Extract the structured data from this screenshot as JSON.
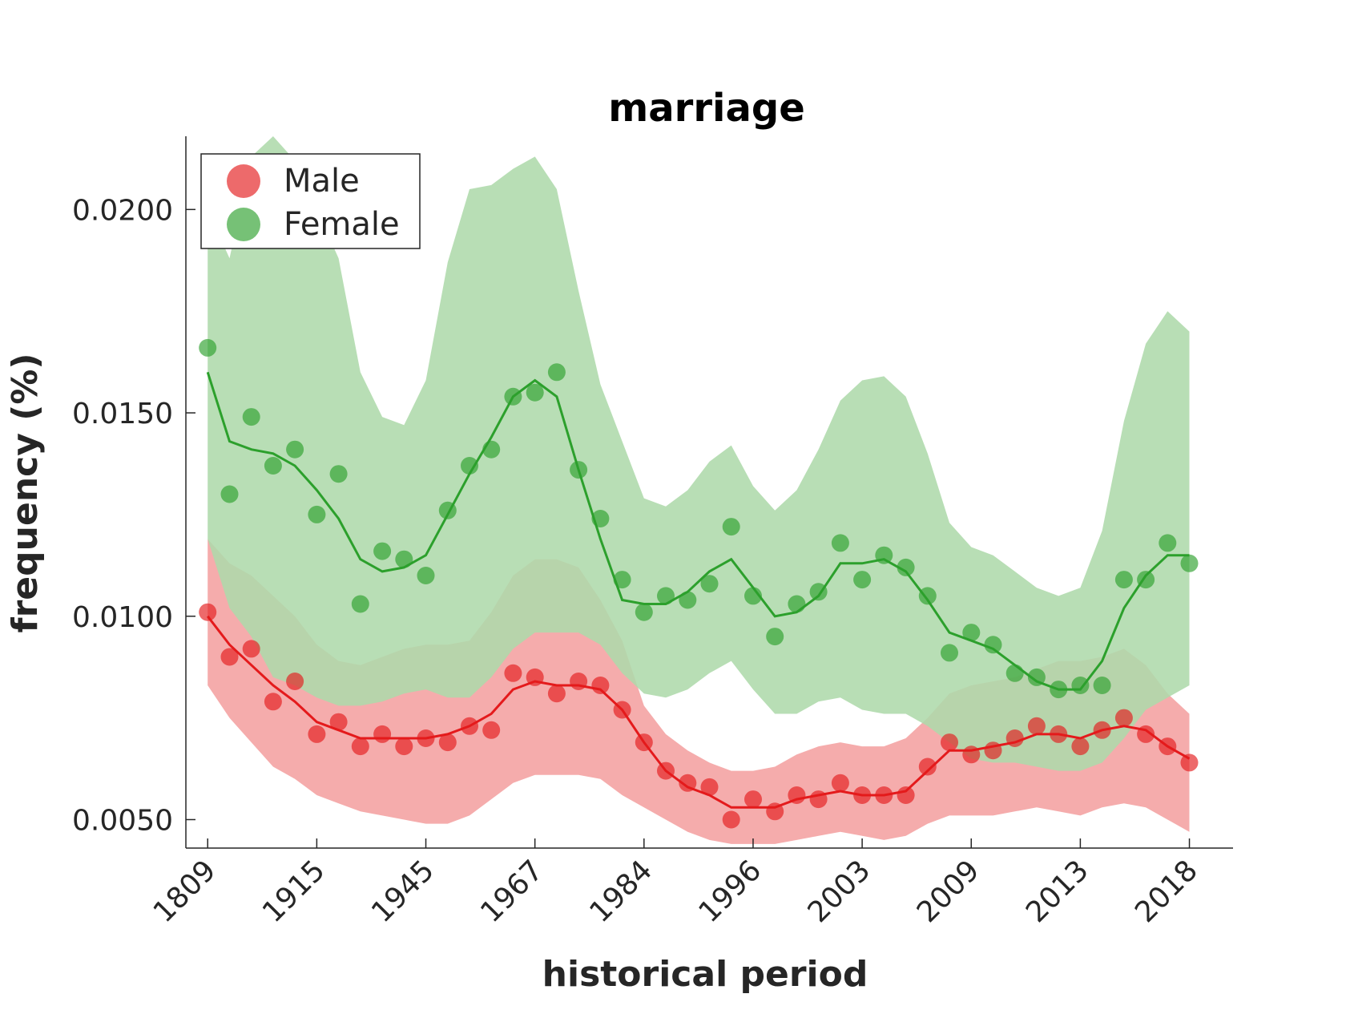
{
  "chart_data": {
    "type": "line",
    "title": "marriage",
    "xlabel": "historical period",
    "ylabel": "frequency (%)",
    "x_tick_labels": [
      "1809",
      "1915",
      "1945",
      "1967",
      "1984",
      "1996",
      "2003",
      "2009",
      "2013",
      "2018"
    ],
    "x_tick_positions": [
      1,
      6,
      11,
      16,
      21,
      26,
      31,
      36,
      41,
      46
    ],
    "x": [
      1,
      2,
      3,
      4,
      5,
      6,
      7,
      8,
      9,
      10,
      11,
      12,
      13,
      14,
      15,
      16,
      17,
      18,
      19,
      20,
      21,
      22,
      23,
      24,
      25,
      26,
      27,
      28,
      29,
      30,
      31,
      32,
      33,
      34,
      35,
      36,
      37,
      38,
      39,
      40,
      41,
      42,
      43,
      44,
      45,
      46
    ],
    "xlim": [
      0,
      48
    ],
    "ylim": [
      0.0043,
      0.0218
    ],
    "y_ticks": [
      0.005,
      0.01,
      0.015,
      0.02
    ],
    "y_tick_labels": [
      "0.0050",
      "0.0100",
      "0.0150",
      "0.0200"
    ],
    "grid": false,
    "legend": {
      "position": "top-left",
      "entries": [
        "Male",
        "Female"
      ]
    },
    "series": [
      {
        "name": "Male",
        "color": "#e41a1c",
        "band_color": "#f4a1a1",
        "points": [
          0.0101,
          0.009,
          0.0092,
          0.0079,
          0.0084,
          0.0071,
          0.0074,
          0.0068,
          0.0071,
          0.0068,
          0.007,
          0.0069,
          0.0073,
          0.0072,
          0.0086,
          0.0085,
          0.0081,
          0.0084,
          0.0083,
          0.0077,
          0.0069,
          0.0062,
          0.0059,
          0.0058,
          0.005,
          0.0055,
          0.0052,
          0.0056,
          0.0055,
          0.0059,
          0.0056,
          0.0056,
          0.0056,
          0.0063,
          0.0069,
          0.0066,
          0.0067,
          0.007,
          0.0073,
          0.0071,
          0.0068,
          0.0072,
          0.0075,
          0.0071,
          0.0068,
          0.0064
        ],
        "smooth": [
          0.01,
          0.0093,
          0.0088,
          0.0083,
          0.0079,
          0.0074,
          0.0072,
          0.007,
          0.007,
          0.007,
          0.007,
          0.0071,
          0.0073,
          0.0076,
          0.0082,
          0.0084,
          0.0083,
          0.0083,
          0.0082,
          0.0077,
          0.0069,
          0.0062,
          0.0058,
          0.0056,
          0.0053,
          0.0053,
          0.0053,
          0.0055,
          0.0056,
          0.0057,
          0.0056,
          0.0056,
          0.0057,
          0.0062,
          0.0067,
          0.0067,
          0.0068,
          0.0069,
          0.0071,
          0.0071,
          0.007,
          0.0072,
          0.0073,
          0.0072,
          0.0068,
          0.0065
        ],
        "lower": [
          0.0083,
          0.0075,
          0.0069,
          0.0063,
          0.006,
          0.0056,
          0.0054,
          0.0052,
          0.0051,
          0.005,
          0.0049,
          0.0049,
          0.0051,
          0.0055,
          0.0059,
          0.0061,
          0.0061,
          0.0061,
          0.006,
          0.0056,
          0.0053,
          0.005,
          0.0047,
          0.0045,
          0.0044,
          0.0044,
          0.0044,
          0.0045,
          0.0046,
          0.0047,
          0.0046,
          0.0045,
          0.0046,
          0.0049,
          0.0051,
          0.0051,
          0.0051,
          0.0052,
          0.0053,
          0.0052,
          0.0051,
          0.0053,
          0.0054,
          0.0053,
          0.005,
          0.0047
        ],
        "upper": [
          0.0119,
          0.0113,
          0.011,
          0.0105,
          0.01,
          0.0093,
          0.0089,
          0.0088,
          0.009,
          0.0092,
          0.0093,
          0.0093,
          0.0094,
          0.0101,
          0.011,
          0.0114,
          0.0114,
          0.0112,
          0.0104,
          0.0094,
          0.0078,
          0.0071,
          0.0067,
          0.0064,
          0.0062,
          0.0062,
          0.0063,
          0.0066,
          0.0068,
          0.0069,
          0.0068,
          0.0068,
          0.007,
          0.0075,
          0.0081,
          0.0083,
          0.0084,
          0.0085,
          0.0087,
          0.0089,
          0.0089,
          0.009,
          0.0092,
          0.0088,
          0.0081,
          0.0076
        ]
      },
      {
        "name": "Female",
        "color": "#2ca02c",
        "band_color": "#aed9ab",
        "points": [
          0.0166,
          0.013,
          0.0149,
          0.0137,
          0.0141,
          0.0125,
          0.0135,
          0.0103,
          0.0116,
          0.0114,
          0.011,
          0.0126,
          0.0137,
          0.0141,
          0.0154,
          0.0155,
          0.016,
          0.0136,
          0.0124,
          0.0109,
          0.0101,
          0.0105,
          0.0104,
          0.0108,
          0.0122,
          0.0105,
          0.0095,
          0.0103,
          0.0106,
          0.0118,
          0.0109,
          0.0115,
          0.0112,
          0.0105,
          0.0091,
          0.0096,
          0.0093,
          0.0086,
          0.0085,
          0.0082,
          0.0083,
          0.0083,
          0.0109,
          0.0109,
          0.0118,
          0.0113
        ],
        "smooth": [
          0.016,
          0.0143,
          0.0141,
          0.014,
          0.0137,
          0.0131,
          0.0124,
          0.0114,
          0.0111,
          0.0112,
          0.0115,
          0.0125,
          0.0135,
          0.0144,
          0.0154,
          0.0158,
          0.0154,
          0.0136,
          0.0119,
          0.0104,
          0.0103,
          0.0103,
          0.0106,
          0.0111,
          0.0114,
          0.0107,
          0.01,
          0.0101,
          0.0105,
          0.0113,
          0.0113,
          0.0114,
          0.0111,
          0.0104,
          0.0096,
          0.0094,
          0.0092,
          0.0088,
          0.0084,
          0.0082,
          0.0082,
          0.0089,
          0.0102,
          0.011,
          0.0115,
          0.0115
        ],
        "lower": [
          0.0119,
          0.0102,
          0.0095,
          0.0085,
          0.0083,
          0.008,
          0.0078,
          0.0078,
          0.0079,
          0.0081,
          0.0082,
          0.008,
          0.008,
          0.0085,
          0.0092,
          0.0096,
          0.0096,
          0.0096,
          0.0093,
          0.0086,
          0.0081,
          0.008,
          0.0082,
          0.0086,
          0.0089,
          0.0082,
          0.0076,
          0.0076,
          0.0079,
          0.008,
          0.0077,
          0.0076,
          0.0076,
          0.0073,
          0.0069,
          0.0065,
          0.0064,
          0.0064,
          0.0063,
          0.0062,
          0.0062,
          0.0064,
          0.007,
          0.0077,
          0.008,
          0.0083
        ],
        "upper": [
          0.02,
          0.0188,
          0.0213,
          0.0218,
          0.0212,
          0.02,
          0.0188,
          0.016,
          0.0149,
          0.0147,
          0.0158,
          0.0187,
          0.0205,
          0.0206,
          0.021,
          0.0213,
          0.0205,
          0.018,
          0.0157,
          0.0143,
          0.0129,
          0.0127,
          0.0131,
          0.0138,
          0.0142,
          0.0132,
          0.0126,
          0.0131,
          0.0141,
          0.0153,
          0.0158,
          0.0159,
          0.0154,
          0.014,
          0.0123,
          0.0117,
          0.0115,
          0.0111,
          0.0107,
          0.0105,
          0.0107,
          0.0121,
          0.0148,
          0.0167,
          0.0175,
          0.017
        ]
      }
    ]
  }
}
